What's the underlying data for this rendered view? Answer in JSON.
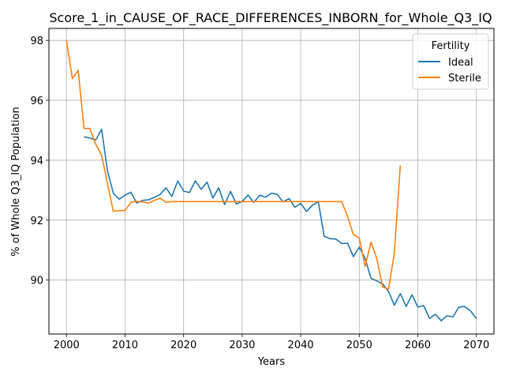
{
  "chart_data": {
    "type": "line",
    "title": "Score_1_in_CAUSE_OF_RACE_DIFFERENCES_INBORN_for_Whole_Q3_IQ",
    "xlabel": "Years",
    "ylabel": "% of Whole Q3_IQ Population",
    "xlim": [
      1997,
      2073
    ],
    "ylim": [
      88.2,
      98.4
    ],
    "x_ticks": [
      2000,
      2010,
      2020,
      2030,
      2040,
      2050,
      2060,
      2070
    ],
    "y_ticks": [
      90,
      92,
      94,
      96,
      98
    ],
    "grid": true,
    "legend": {
      "title": "Fertility",
      "position": "top-right"
    },
    "series": [
      {
        "name": "Ideal",
        "color": "#1f77b4",
        "points": [
          [
            2003,
            94.78
          ],
          [
            2004,
            94.74
          ],
          [
            2005,
            94.68
          ],
          [
            2006,
            95.03
          ],
          [
            2007,
            93.65
          ],
          [
            2008,
            92.9
          ],
          [
            2009,
            92.7
          ],
          [
            2010,
            92.84
          ],
          [
            2011,
            92.93
          ],
          [
            2012,
            92.57
          ],
          [
            2013,
            92.66
          ],
          [
            2014,
            92.68
          ],
          [
            2015,
            92.76
          ],
          [
            2016,
            92.86
          ],
          [
            2017,
            93.08
          ],
          [
            2018,
            92.79
          ],
          [
            2019,
            93.31
          ],
          [
            2020,
            92.97
          ],
          [
            2021,
            92.92
          ],
          [
            2022,
            93.31
          ],
          [
            2023,
            93.03
          ],
          [
            2024,
            93.27
          ],
          [
            2025,
            92.74
          ],
          [
            2026,
            93.08
          ],
          [
            2027,
            92.52
          ],
          [
            2028,
            92.96
          ],
          [
            2029,
            92.54
          ],
          [
            2030,
            92.62
          ],
          [
            2031,
            92.84
          ],
          [
            2032,
            92.59
          ],
          [
            2033,
            92.83
          ],
          [
            2034,
            92.77
          ],
          [
            2035,
            92.9
          ],
          [
            2036,
            92.86
          ],
          [
            2037,
            92.61
          ],
          [
            2038,
            92.72
          ],
          [
            2039,
            92.43
          ],
          [
            2040,
            92.56
          ],
          [
            2041,
            92.29
          ],
          [
            2042,
            92.5
          ],
          [
            2043,
            92.62
          ],
          [
            2044,
            91.46
          ],
          [
            2045,
            91.38
          ],
          [
            2046,
            91.37
          ],
          [
            2047,
            91.22
          ],
          [
            2048,
            91.23
          ],
          [
            2049,
            90.78
          ],
          [
            2050,
            91.1
          ],
          [
            2051,
            90.72
          ],
          [
            2052,
            90.06
          ],
          [
            2053,
            89.97
          ],
          [
            2054,
            89.87
          ],
          [
            2055,
            89.62
          ],
          [
            2056,
            89.16
          ],
          [
            2057,
            89.55
          ],
          [
            2058,
            89.12
          ],
          [
            2059,
            89.51
          ],
          [
            2060,
            89.1
          ],
          [
            2061,
            89.15
          ],
          [
            2062,
            88.72
          ],
          [
            2063,
            88.86
          ],
          [
            2064,
            88.64
          ],
          [
            2065,
            88.81
          ],
          [
            2066,
            88.77
          ],
          [
            2067,
            89.1
          ],
          [
            2068,
            89.12
          ],
          [
            2069,
            88.97
          ],
          [
            2070,
            88.72
          ]
        ]
      },
      {
        "name": "Sterile",
        "color": "#ff7f0e",
        "points": [
          [
            2000,
            98.0
          ],
          [
            2001,
            96.72
          ],
          [
            2002,
            97.0
          ],
          [
            2003,
            95.06
          ],
          [
            2004,
            95.06
          ],
          [
            2005,
            94.53
          ],
          [
            2006,
            94.17
          ],
          [
            2007,
            93.22
          ],
          [
            2008,
            92.3
          ],
          [
            2009,
            92.32
          ],
          [
            2010,
            92.32
          ],
          [
            2011,
            92.6
          ],
          [
            2012,
            92.63
          ],
          [
            2013,
            92.61
          ],
          [
            2014,
            92.57
          ],
          [
            2015,
            92.66
          ],
          [
            2016,
            92.73
          ],
          [
            2017,
            92.6
          ],
          [
            2018,
            92.62
          ],
          [
            2019,
            92.62
          ],
          [
            2020,
            92.62
          ],
          [
            2021,
            92.62
          ],
          [
            2022,
            92.62
          ],
          [
            2023,
            92.62
          ],
          [
            2024,
            92.62
          ],
          [
            2025,
            92.62
          ],
          [
            2026,
            92.62
          ],
          [
            2027,
            92.62
          ],
          [
            2028,
            92.62
          ],
          [
            2029,
            92.62
          ],
          [
            2030,
            92.62
          ],
          [
            2031,
            92.62
          ],
          [
            2032,
            92.62
          ],
          [
            2033,
            92.62
          ],
          [
            2034,
            92.62
          ],
          [
            2035,
            92.62
          ],
          [
            2036,
            92.62
          ],
          [
            2037,
            92.62
          ],
          [
            2038,
            92.62
          ],
          [
            2039,
            92.62
          ],
          [
            2040,
            92.62
          ],
          [
            2041,
            92.62
          ],
          [
            2042,
            92.62
          ],
          [
            2043,
            92.62
          ],
          [
            2044,
            92.62
          ],
          [
            2045,
            92.62
          ],
          [
            2046,
            92.62
          ],
          [
            2047,
            92.62
          ],
          [
            2048,
            92.12
          ],
          [
            2049,
            91.51
          ],
          [
            2050,
            91.41
          ],
          [
            2051,
            90.45
          ],
          [
            2052,
            91.27
          ],
          [
            2053,
            90.71
          ],
          [
            2054,
            89.77
          ],
          [
            2055,
            89.7
          ],
          [
            2056,
            90.91
          ],
          [
            2057,
            93.83
          ]
        ]
      }
    ]
  }
}
